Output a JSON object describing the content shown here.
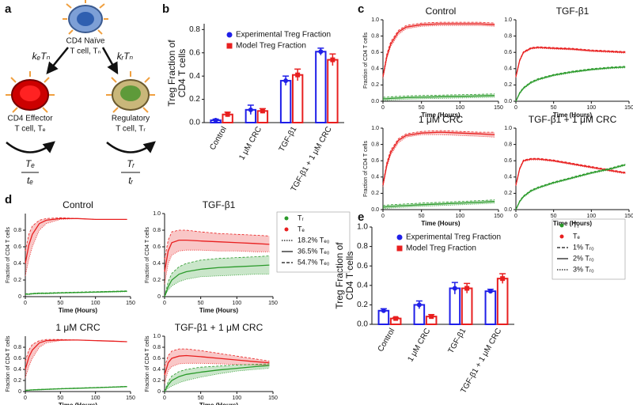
{
  "panel_labels": [
    "a",
    "b",
    "c",
    "d",
    "e"
  ],
  "diagram": {
    "naive": [
      "CD4 Naïve",
      "T cell, Tₙ"
    ],
    "effector": [
      "CD4 Effector",
      "T cell, Tₑ"
    ],
    "regulatory": [
      "Regulatory",
      "T cell, Tᵣ"
    ],
    "rates": [
      "kₑTₙ",
      "kᵣTₙ"
    ],
    "fractions": [
      [
        "Tₑ",
        "tₑ"
      ],
      [
        "Tᵣ",
        "tᵣ"
      ]
    ]
  },
  "legends": {
    "d": [
      "Tᵣ",
      "Tₑ",
      "18.2% Tₑ₀",
      "36.5% Tₑ₀",
      "54.7% Tₑ₀"
    ],
    "e": [
      "Tᵣ",
      "Tₑ",
      "1% Tᵣ₀",
      "2% Tᵣ₀",
      "3% Tᵣ₀"
    ]
  },
  "chart_data": [
    {
      "type": "bar",
      "ylabel": [
        "Treg Fraction of",
        "CD4 T cells"
      ],
      "categories": [
        "Control",
        "1 μM CRC",
        "TGF-β1",
        "TGF-β1 + 1 μM CRC"
      ],
      "series": [
        {
          "name": "Experimental Treg Fraction",
          "color": "#1f1fe8",
          "values": [
            0.02,
            0.11,
            0.36,
            0.61
          ],
          "errors": [
            0.01,
            0.04,
            0.04,
            0.03
          ]
        },
        {
          "name": "Model Treg Fraction",
          "color": "#e81f1f",
          "values": [
            0.07,
            0.1,
            0.41,
            0.54
          ],
          "errors": [
            0.02,
            0.02,
            0.05,
            0.05
          ]
        }
      ],
      "ylim": [
        0,
        0.85
      ],
      "yticks": [
        {
          "value": 0,
          "label": "0.0"
        },
        0.2,
        0.4,
        0.6,
        0.8
      ]
    },
    {
      "type": "line",
      "title": "Control",
      "xlabel": "Time (Hours)",
      "ylabel": "Fraction of CD4 T cells",
      "x": [
        0,
        5,
        10,
        20,
        30,
        50,
        75,
        100,
        125,
        145
      ],
      "xlim": [
        0,
        150
      ],
      "xticks": [
        0,
        50,
        100,
        150
      ],
      "ylim": [
        0,
        1
      ],
      "yticks": [
        {
          "value": 0,
          "label": "0.0"
        },
        0.2,
        0.4,
        0.6,
        0.8,
        {
          "value": 1,
          "label": "1.0"
        }
      ],
      "series": [
        {
          "color": "#e81f1f",
          "values": [
            0.3,
            0.55,
            0.7,
            0.85,
            0.91,
            0.94,
            0.95,
            0.95,
            0.95,
            0.94
          ],
          "lower": [
            0.28,
            0.52,
            0.67,
            0.82,
            0.89,
            0.92,
            0.93,
            0.93,
            0.93,
            0.92
          ],
          "upper": [
            0.32,
            0.58,
            0.73,
            0.87,
            0.93,
            0.96,
            0.97,
            0.97,
            0.97,
            0.96
          ]
        },
        {
          "color": "#2a9a2a",
          "values": [
            0.03,
            0.03,
            0.035,
            0.04,
            0.045,
            0.05,
            0.055,
            0.06,
            0.065,
            0.07
          ],
          "lower": [
            0.01,
            0.01,
            0.015,
            0.02,
            0.025,
            0.03,
            0.035,
            0.04,
            0.045,
            0.05
          ],
          "upper": [
            0.05,
            0.05,
            0.055,
            0.06,
            0.065,
            0.07,
            0.075,
            0.08,
            0.085,
            0.09
          ]
        }
      ]
    },
    {
      "type": "line",
      "title": "TGF-β1",
      "xlabel": "Time (Hours)",
      "x": [
        0,
        5,
        10,
        20,
        30,
        50,
        75,
        100,
        125,
        145
      ],
      "xlim": [
        0,
        150
      ],
      "xticks": [
        0,
        50,
        100,
        150
      ],
      "ylim": [
        0,
        1
      ],
      "yticks": [
        {
          "value": 0,
          "label": "0.0"
        },
        0.2,
        0.4,
        0.6,
        0.8,
        {
          "value": 1,
          "label": "1.0"
        }
      ],
      "series": [
        {
          "color": "#e81f1f",
          "values": [
            0.3,
            0.5,
            0.6,
            0.65,
            0.66,
            0.65,
            0.64,
            0.62,
            0.61,
            0.6
          ],
          "lower": [
            0.29,
            0.49,
            0.59,
            0.64,
            0.65,
            0.64,
            0.63,
            0.61,
            0.6,
            0.59
          ],
          "upper": [
            0.31,
            0.51,
            0.61,
            0.66,
            0.67,
            0.66,
            0.65,
            0.63,
            0.62,
            0.61
          ]
        },
        {
          "color": "#2a9a2a",
          "values": [
            0.0,
            0.1,
            0.16,
            0.23,
            0.27,
            0.32,
            0.36,
            0.39,
            0.41,
            0.42
          ],
          "lower": [
            0.0,
            0.09,
            0.15,
            0.22,
            0.26,
            0.31,
            0.35,
            0.38,
            0.4,
            0.41
          ],
          "upper": [
            0.0,
            0.11,
            0.17,
            0.24,
            0.28,
            0.33,
            0.37,
            0.4,
            0.42,
            0.43
          ]
        }
      ]
    },
    {
      "type": "line",
      "title": "1 μM CRC",
      "xlabel": "Time (Hours)",
      "ylabel": "Fraction of CD4 T cells",
      "x": [
        0,
        5,
        10,
        20,
        30,
        50,
        75,
        100,
        125,
        145
      ],
      "xlim": [
        0,
        150
      ],
      "xticks": [
        0,
        50,
        100,
        150
      ],
      "ylim": [
        0,
        1
      ],
      "yticks": [
        {
          "value": 0,
          "label": "0.0"
        },
        0.2,
        0.4,
        0.6,
        0.8,
        {
          "value": 1,
          "label": "1.0"
        }
      ],
      "series": [
        {
          "color": "#e81f1f",
          "values": [
            0.3,
            0.55,
            0.7,
            0.85,
            0.91,
            0.94,
            0.95,
            0.94,
            0.93,
            0.92
          ],
          "lower": [
            0.28,
            0.52,
            0.67,
            0.82,
            0.89,
            0.92,
            0.92,
            0.91,
            0.9,
            0.89
          ],
          "upper": [
            0.32,
            0.58,
            0.73,
            0.87,
            0.93,
            0.96,
            0.97,
            0.96,
            0.95,
            0.95
          ]
        },
        {
          "color": "#2a9a2a",
          "values": [
            0.03,
            0.035,
            0.04,
            0.045,
            0.05,
            0.06,
            0.07,
            0.08,
            0.09,
            0.1
          ],
          "lower": [
            0.01,
            0.015,
            0.02,
            0.025,
            0.03,
            0.04,
            0.05,
            0.06,
            0.07,
            0.08
          ],
          "upper": [
            0.05,
            0.055,
            0.06,
            0.065,
            0.07,
            0.08,
            0.09,
            0.1,
            0.11,
            0.12
          ]
        }
      ]
    },
    {
      "type": "line",
      "title": "TGF-β1 + 1 μM CRC",
      "xlabel": "Time (Hours)",
      "x": [
        0,
        5,
        10,
        20,
        30,
        50,
        75,
        100,
        125,
        145
      ],
      "xlim": [
        0,
        150
      ],
      "xticks": [
        0,
        50,
        100,
        150
      ],
      "ylim": [
        0,
        1
      ],
      "yticks": [
        {
          "value": 0,
          "label": "0.0"
        },
        0.2,
        0.4,
        0.6,
        0.8,
        {
          "value": 1,
          "label": "1.0"
        }
      ],
      "series": [
        {
          "color": "#e81f1f",
          "values": [
            0.3,
            0.5,
            0.6,
            0.62,
            0.62,
            0.6,
            0.56,
            0.52,
            0.48,
            0.45
          ],
          "lower": [
            0.29,
            0.49,
            0.59,
            0.61,
            0.61,
            0.59,
            0.55,
            0.51,
            0.47,
            0.44
          ],
          "upper": [
            0.31,
            0.51,
            0.61,
            0.63,
            0.63,
            0.61,
            0.57,
            0.53,
            0.49,
            0.46
          ]
        },
        {
          "color": "#2a9a2a",
          "values": [
            0.0,
            0.1,
            0.16,
            0.23,
            0.27,
            0.33,
            0.39,
            0.45,
            0.5,
            0.55
          ],
          "lower": [
            0.0,
            0.09,
            0.15,
            0.22,
            0.26,
            0.32,
            0.38,
            0.44,
            0.49,
            0.54
          ],
          "upper": [
            0.0,
            0.11,
            0.17,
            0.24,
            0.28,
            0.34,
            0.4,
            0.46,
            0.51,
            0.56
          ]
        }
      ]
    },
    {
      "type": "line",
      "title": "Control",
      "xlabel": "Time (Hours)",
      "ylabel": "Fraction of CD4 T cells",
      "x": [
        0,
        5,
        10,
        20,
        30,
        50,
        75,
        100,
        125,
        145
      ],
      "xlim": [
        0,
        150
      ],
      "xticks": [
        0,
        50,
        100,
        150
      ],
      "ylim": [
        0,
        1
      ],
      "yticks": [
        0,
        0.2,
        0.4,
        0.6,
        0.8
      ],
      "series": [
        {
          "color": "#e81f1f",
          "values": [
            0.4,
            0.62,
            0.75,
            0.88,
            0.92,
            0.94,
            0.94,
            0.93,
            0.93,
            0.93
          ],
          "lower": [
            0.25,
            0.45,
            0.6,
            0.8,
            0.88,
            0.93,
            0.94,
            0.93,
            0.93,
            0.93
          ],
          "upper": [
            0.55,
            0.75,
            0.85,
            0.92,
            0.94,
            0.95,
            0.94,
            0.93,
            0.93,
            0.93
          ]
        },
        {
          "color": "#2a9a2a",
          "values": [
            0.03,
            0.03,
            0.035,
            0.04,
            0.04,
            0.045,
            0.05,
            0.055,
            0.06,
            0.065
          ],
          "lower": [
            0.025,
            0.025,
            0.03,
            0.035,
            0.035,
            0.04,
            0.045,
            0.05,
            0.055,
            0.06
          ],
          "upper": [
            0.035,
            0.035,
            0.04,
            0.045,
            0.045,
            0.05,
            0.055,
            0.06,
            0.065,
            0.07
          ]
        }
      ]
    },
    {
      "type": "line",
      "title": "TGF-β1",
      "xlabel": "Time (Hours)",
      "ylabel": "Fraction of CD4 T cells",
      "x": [
        0,
        5,
        10,
        20,
        30,
        50,
        75,
        100,
        125,
        145
      ],
      "xlim": [
        0,
        150
      ],
      "xticks": [
        0,
        50,
        100,
        150
      ],
      "ylim": [
        0,
        1
      ],
      "yticks": [
        0,
        0.2,
        0.4,
        0.6,
        0.8,
        {
          "value": 1,
          "label": "1.0"
        }
      ],
      "series": [
        {
          "color": "#e81f1f",
          "values": [
            0.3,
            0.55,
            0.65,
            0.68,
            0.68,
            0.67,
            0.66,
            0.65,
            0.64,
            0.63
          ],
          "lower": [
            0.15,
            0.4,
            0.5,
            0.55,
            0.56,
            0.56,
            0.55,
            0.55,
            0.54,
            0.54
          ],
          "upper": [
            0.45,
            0.68,
            0.78,
            0.8,
            0.8,
            0.78,
            0.76,
            0.75,
            0.74,
            0.73
          ]
        },
        {
          "color": "#2a9a2a",
          "values": [
            0.0,
            0.12,
            0.2,
            0.27,
            0.3,
            0.33,
            0.35,
            0.36,
            0.37,
            0.38
          ],
          "lower": [
            0.0,
            0.08,
            0.13,
            0.18,
            0.21,
            0.24,
            0.25,
            0.26,
            0.27,
            0.27
          ],
          "upper": [
            0.0,
            0.18,
            0.28,
            0.36,
            0.4,
            0.44,
            0.46,
            0.47,
            0.48,
            0.49
          ]
        }
      ]
    },
    {
      "type": "line",
      "title": "1 μM CRC",
      "xlabel": "Time (Hours)",
      "ylabel": "Fraction of CD4 T cells",
      "x": [
        0,
        5,
        10,
        20,
        30,
        50,
        75,
        100,
        125,
        145
      ],
      "xlim": [
        0,
        150
      ],
      "xticks": [
        0,
        50,
        100,
        150
      ],
      "ylim": [
        0,
        1
      ],
      "yticks": [
        0,
        0.2,
        0.4,
        0.6,
        0.8
      ],
      "series": [
        {
          "color": "#e81f1f",
          "values": [
            0.4,
            0.62,
            0.75,
            0.88,
            0.92,
            0.93,
            0.93,
            0.92,
            0.91,
            0.9
          ],
          "lower": [
            0.25,
            0.45,
            0.6,
            0.8,
            0.88,
            0.92,
            0.93,
            0.92,
            0.91,
            0.9
          ],
          "upper": [
            0.55,
            0.75,
            0.85,
            0.92,
            0.94,
            0.94,
            0.93,
            0.92,
            0.91,
            0.9
          ]
        },
        {
          "color": "#2a9a2a",
          "values": [
            0.02,
            0.025,
            0.03,
            0.035,
            0.04,
            0.05,
            0.06,
            0.07,
            0.08,
            0.09
          ],
          "lower": [
            0.015,
            0.02,
            0.025,
            0.03,
            0.035,
            0.045,
            0.055,
            0.065,
            0.075,
            0.085
          ],
          "upper": [
            0.025,
            0.03,
            0.035,
            0.04,
            0.045,
            0.055,
            0.065,
            0.075,
            0.085,
            0.095
          ]
        }
      ]
    },
    {
      "type": "line",
      "title": "TGF-β1 + 1 μM CRC",
      "xlabel": "Time (Hours)",
      "ylabel": "Fraction of CD4 T cells",
      "x": [
        0,
        5,
        10,
        20,
        30,
        50,
        75,
        100,
        125,
        145
      ],
      "xlim": [
        0,
        150
      ],
      "xticks": [
        0,
        50,
        100,
        150
      ],
      "ylim": [
        0,
        1
      ],
      "yticks": [
        0,
        0.2,
        0.4,
        0.6,
        0.8,
        {
          "value": 1,
          "label": "1.0"
        }
      ],
      "series": [
        {
          "color": "#e81f1f",
          "values": [
            0.3,
            0.52,
            0.6,
            0.64,
            0.65,
            0.63,
            0.6,
            0.57,
            0.54,
            0.52
          ],
          "lower": [
            0.15,
            0.38,
            0.45,
            0.5,
            0.51,
            0.51,
            0.5,
            0.49,
            0.48,
            0.47
          ],
          "upper": [
            0.45,
            0.65,
            0.73,
            0.77,
            0.77,
            0.74,
            0.69,
            0.64,
            0.59,
            0.55
          ]
        },
        {
          "color": "#2a9a2a",
          "values": [
            0.0,
            0.12,
            0.2,
            0.27,
            0.31,
            0.35,
            0.39,
            0.42,
            0.45,
            0.47
          ],
          "lower": [
            0.0,
            0.06,
            0.1,
            0.16,
            0.2,
            0.26,
            0.32,
            0.37,
            0.4,
            0.42
          ],
          "upper": [
            0.0,
            0.18,
            0.28,
            0.36,
            0.4,
            0.44,
            0.46,
            0.48,
            0.49,
            0.5
          ]
        }
      ]
    },
    {
      "type": "bar",
      "ylabel": [
        "Treg Fraction of",
        "CD4 T cells"
      ],
      "categories": [
        "Control",
        "1 μM CRC",
        "TGF-β1",
        "TGF-β1 + 1 μM CRC"
      ],
      "series": [
        {
          "name": "Experimental Treg Fraction",
          "color": "#1f1fe8",
          "values": [
            0.14,
            0.2,
            0.37,
            0.34
          ],
          "errors": [
            0.02,
            0.04,
            0.06,
            0.02
          ]
        },
        {
          "name": "Model Treg Fraction",
          "color": "#e81f1f",
          "values": [
            0.06,
            0.08,
            0.37,
            0.47
          ],
          "errors": [
            0.01,
            0.02,
            0.05,
            0.05
          ]
        }
      ],
      "ylim": [
        0,
        1
      ],
      "yticks": [
        {
          "value": 0,
          "label": "0.0"
        },
        0.2,
        0.4,
        0.6,
        0.8,
        {
          "value": 1,
          "label": "1.0"
        }
      ]
    }
  ]
}
